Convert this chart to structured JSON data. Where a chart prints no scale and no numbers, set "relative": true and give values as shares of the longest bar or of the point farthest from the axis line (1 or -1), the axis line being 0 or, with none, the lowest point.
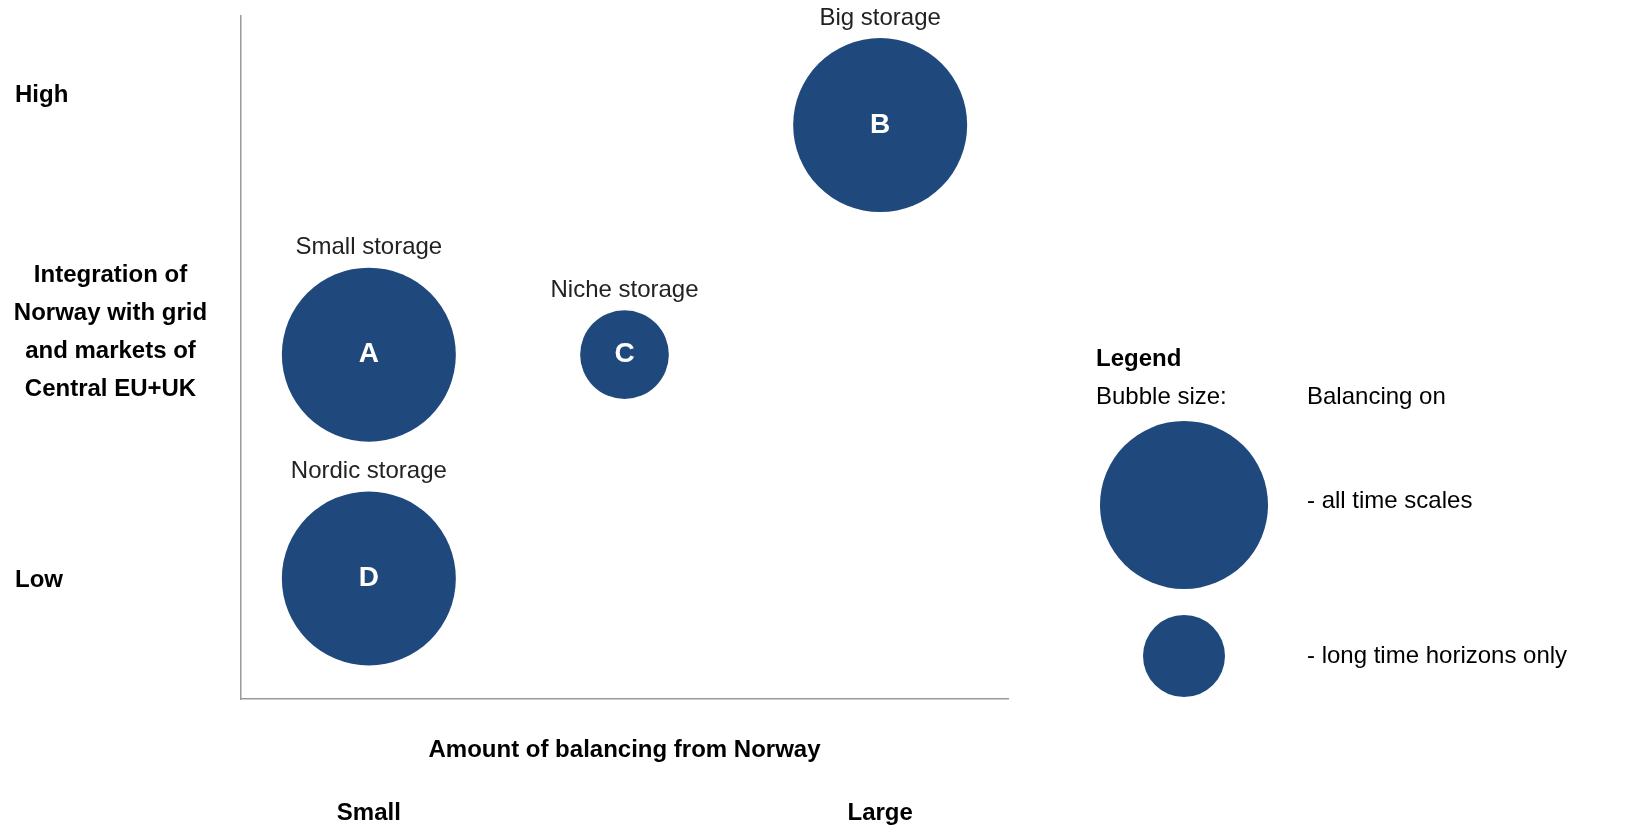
{
  "chart_data": {
    "type": "bubble",
    "relative": true,
    "xlabel": "Amount of balancing from Norway",
    "ylabel": "Integration of Norway with grid and markets of Central EU+UK",
    "legend_title": "Legend",
    "categories": [
      "Small",
      null,
      "Large"
    ],
    "series": [
      {
        "color": "#1f497d",
        "values": [
          0.6,
          0.6,
          1
        ],
        "sizes": [
          1,
          0.26,
          1
        ]
      },
      {
        "color": "#1f497d",
        "values": [
          0.21,
          null,
          null
        ],
        "sizes": [
          1,
          null,
          null
        ]
      }
    ],
    "annotations": [
      "A",
      "C",
      "B",
      "D",
      "Small storage",
      "Niche storage",
      "Big storage",
      "Nordic storage",
      "High",
      "Low",
      "Bubble size:",
      "Balancing on",
      "- all time scales",
      "- long time horizons only"
    ]
  }
}
